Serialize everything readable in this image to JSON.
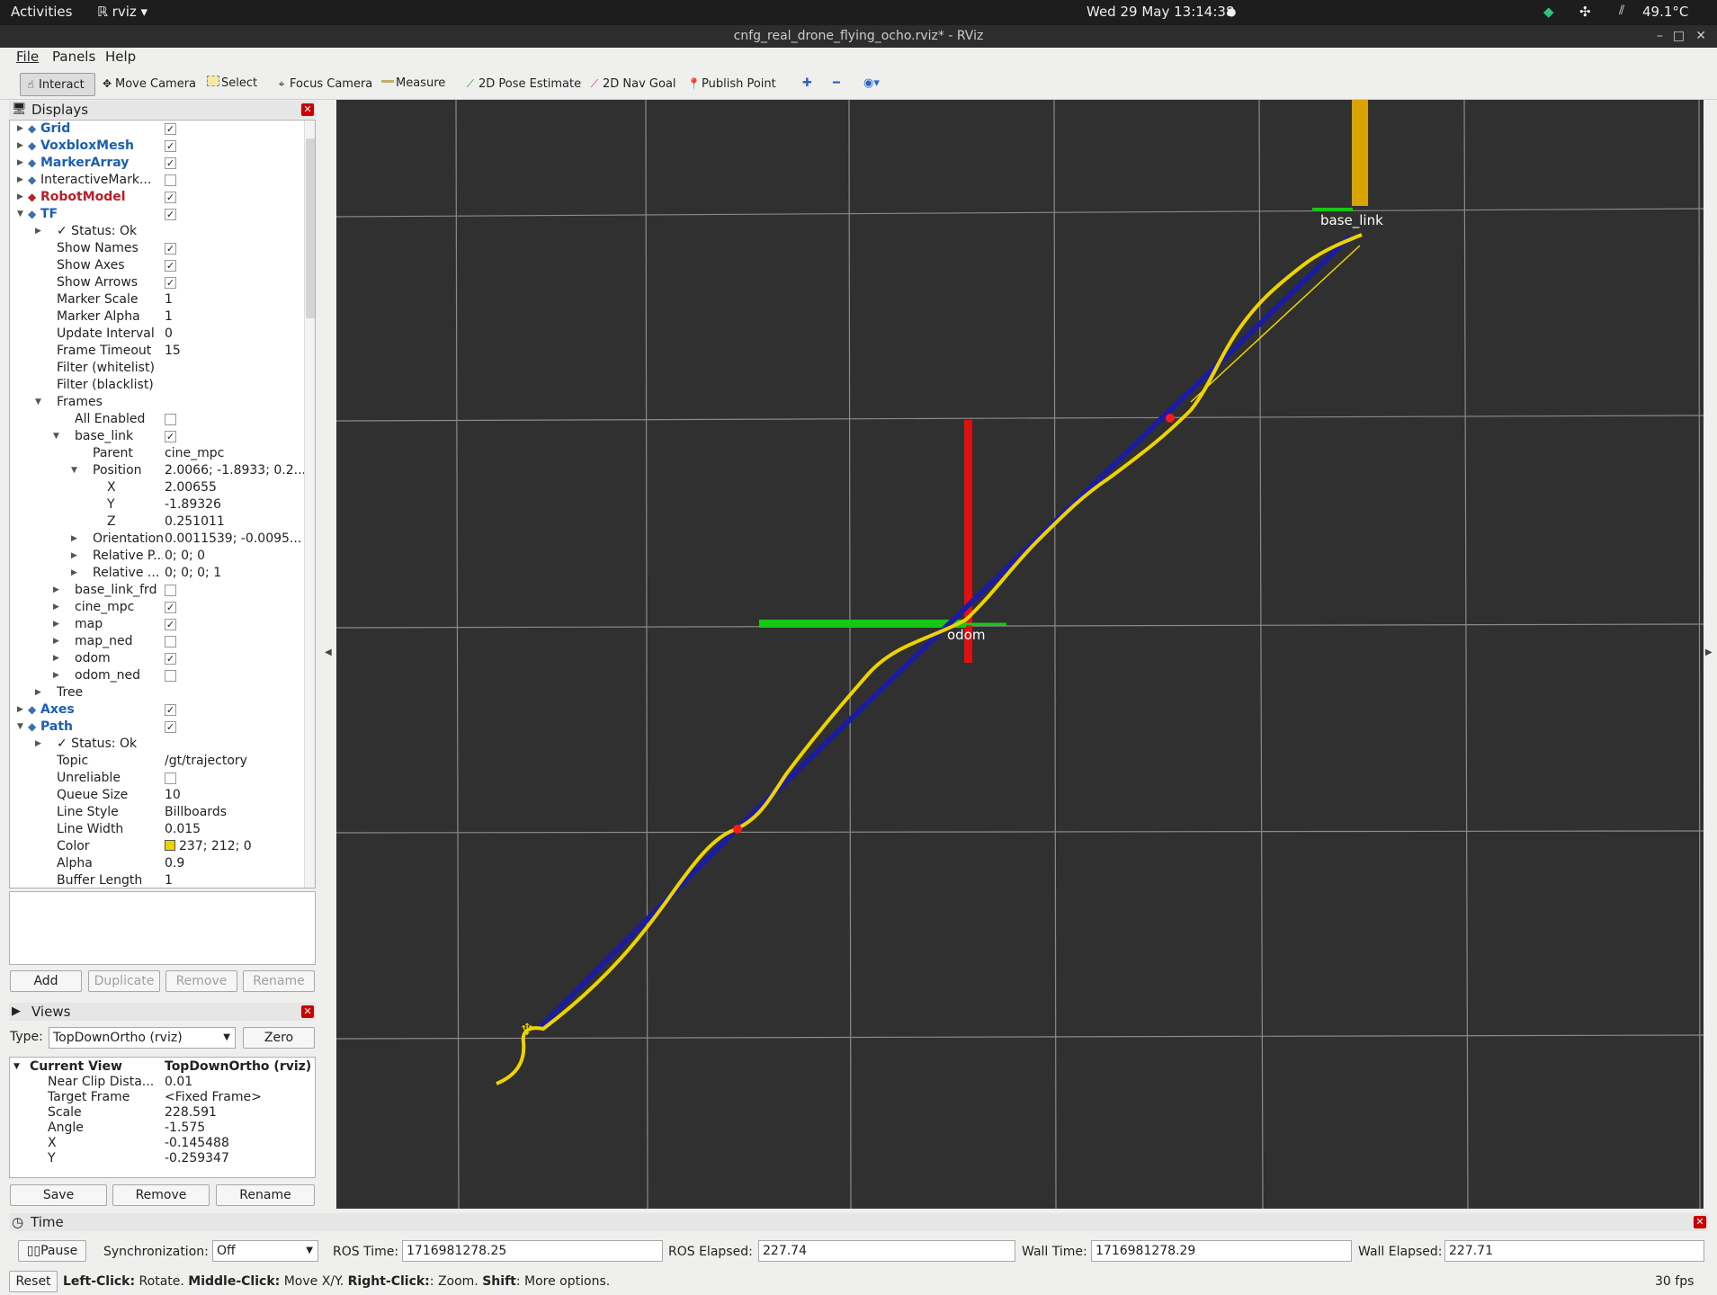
{
  "system_bar": {
    "activities": "Activities",
    "app": "rviz",
    "clock": "Wed 29 May  13:14:38",
    "temperature": "49.1°C"
  },
  "window": {
    "title": "cnfg_real_drone_flying_ocho.rviz* - RViz"
  },
  "menu": [
    "File",
    "Panels",
    "Help"
  ],
  "toolbar": [
    {
      "label": "Interact",
      "icon": "hand-icon",
      "active": true
    },
    {
      "label": "Move Camera",
      "icon": "move-camera-icon"
    },
    {
      "label": "Select",
      "icon": "select-icon"
    },
    {
      "label": "Focus Camera",
      "icon": "focus-icon"
    },
    {
      "label": "Measure",
      "icon": "ruler-icon"
    },
    {
      "label": "2D Pose Estimate",
      "icon": "green-arrow-icon"
    },
    {
      "label": "2D Nav Goal",
      "icon": "pink-arrow-icon"
    },
    {
      "label": "Publish Point",
      "icon": "map-pin-icon"
    }
  ],
  "displays": {
    "title": "Displays",
    "rows": [
      {
        "label": "Grid",
        "value": "",
        "check": true,
        "indent": 0,
        "arrow": "right",
        "style": "blue"
      },
      {
        "label": "VoxbloxMesh",
        "value": "",
        "check": true,
        "indent": 0,
        "arrow": "right",
        "style": "blue"
      },
      {
        "label": "MarkerArray",
        "value": "",
        "check": true,
        "indent": 0,
        "arrow": "right",
        "style": "blue"
      },
      {
        "label": "InteractiveMark...",
        "value": "",
        "check": false,
        "indent": 0,
        "arrow": "right",
        "style": ""
      },
      {
        "label": "RobotModel",
        "value": "",
        "check": true,
        "indent": 0,
        "arrow": "right",
        "style": "red"
      },
      {
        "label": "TF",
        "value": "",
        "check": true,
        "indent": 0,
        "arrow": "down",
        "style": "blue"
      },
      {
        "label": "✓ Status: Ok",
        "value": "",
        "indent": 1,
        "arrow": "right",
        "style": ""
      },
      {
        "label": "Show Names",
        "value": "",
        "check": true,
        "indent": 1,
        "style": ""
      },
      {
        "label": "Show Axes",
        "value": "",
        "check": true,
        "indent": 1,
        "style": ""
      },
      {
        "label": "Show Arrows",
        "value": "",
        "check": true,
        "indent": 1,
        "style": ""
      },
      {
        "label": "Marker Scale",
        "value": "1",
        "indent": 1,
        "style": ""
      },
      {
        "label": "Marker Alpha",
        "value": "1",
        "indent": 1,
        "style": ""
      },
      {
        "label": "Update Interval",
        "value": "0",
        "indent": 1,
        "style": ""
      },
      {
        "label": "Frame Timeout",
        "value": "15",
        "indent": 1,
        "style": ""
      },
      {
        "label": "Filter (whitelist)",
        "value": "",
        "indent": 1,
        "style": ""
      },
      {
        "label": "Filter (blacklist)",
        "value": "",
        "indent": 1,
        "style": ""
      },
      {
        "label": "Frames",
        "value": "",
        "indent": 1,
        "arrow": "down",
        "style": ""
      },
      {
        "label": "All Enabled",
        "value": "",
        "check": false,
        "indent": 2,
        "style": ""
      },
      {
        "label": "base_link",
        "value": "",
        "check": true,
        "indent": 2,
        "arrow": "down",
        "style": ""
      },
      {
        "label": "Parent",
        "value": "cine_mpc",
        "indent": 3,
        "style": ""
      },
      {
        "label": "Position",
        "value": "2.0066; -1.8933; 0.2...",
        "indent": 3,
        "arrow": "down",
        "style": ""
      },
      {
        "label": "X",
        "value": "2.00655",
        "indent": 4,
        "style": ""
      },
      {
        "label": "Y",
        "value": "-1.89326",
        "indent": 4,
        "style": ""
      },
      {
        "label": "Z",
        "value": "0.251011",
        "indent": 4,
        "style": ""
      },
      {
        "label": "Orientation",
        "value": "0.0011539; -0.0095...",
        "indent": 3,
        "arrow": "right",
        "style": ""
      },
      {
        "label": "Relative P...",
        "value": "0; 0; 0",
        "indent": 3,
        "arrow": "right",
        "style": ""
      },
      {
        "label": "Relative ...",
        "value": "0; 0; 0; 1",
        "indent": 3,
        "arrow": "right",
        "style": ""
      },
      {
        "label": "base_link_frd",
        "value": "",
        "check": false,
        "indent": 2,
        "arrow": "right",
        "style": ""
      },
      {
        "label": "cine_mpc",
        "value": "",
        "check": true,
        "indent": 2,
        "arrow": "right",
        "style": ""
      },
      {
        "label": "map",
        "value": "",
        "check": true,
        "indent": 2,
        "arrow": "right",
        "style": ""
      },
      {
        "label": "map_ned",
        "value": "",
        "check": false,
        "indent": 2,
        "arrow": "right",
        "style": ""
      },
      {
        "label": "odom",
        "value": "",
        "check": true,
        "indent": 2,
        "arrow": "right",
        "style": ""
      },
      {
        "label": "odom_ned",
        "value": "",
        "check": false,
        "indent": 2,
        "arrow": "right",
        "style": ""
      },
      {
        "label": "Tree",
        "value": "",
        "indent": 1,
        "arrow": "right",
        "style": ""
      },
      {
        "label": "Axes",
        "value": "",
        "check": true,
        "indent": 0,
        "arrow": "right",
        "style": "blue"
      },
      {
        "label": "Path",
        "value": "",
        "check": true,
        "indent": 0,
        "arrow": "down",
        "style": "blue"
      },
      {
        "label": "✓ Status: Ok",
        "value": "",
        "indent": 1,
        "arrow": "right",
        "style": ""
      },
      {
        "label": "Topic",
        "value": "/gt/trajectory",
        "indent": 1,
        "style": ""
      },
      {
        "label": "Unreliable",
        "value": "",
        "check": false,
        "indent": 1,
        "style": ""
      },
      {
        "label": "Queue Size",
        "value": "10",
        "indent": 1,
        "style": ""
      },
      {
        "label": "Line Style",
        "value": "Billboards",
        "indent": 1,
        "style": ""
      },
      {
        "label": "Line Width",
        "value": "0.015",
        "indent": 1,
        "style": ""
      },
      {
        "label": "Color",
        "value": "237; 212; 0",
        "swatch": "#edd400",
        "indent": 1,
        "style": ""
      },
      {
        "label": "Alpha",
        "value": "0.9",
        "indent": 1,
        "style": ""
      },
      {
        "label": "Buffer Length",
        "value": "1",
        "indent": 1,
        "style": ""
      }
    ],
    "buttons": {
      "add": "Add",
      "duplicate": "Duplicate",
      "remove": "Remove",
      "rename": "Rename"
    }
  },
  "views": {
    "title": "Views",
    "type_label": "Type:",
    "type_value": "TopDownOrtho (rviz)",
    "zero": "Zero",
    "current_view_label": "Current View",
    "current_view_value": "TopDownOrtho (rviz)",
    "props": [
      {
        "label": "Near Clip Dista...",
        "value": "0.01"
      },
      {
        "label": "Target Frame",
        "value": "<Fixed Frame>"
      },
      {
        "label": "Scale",
        "value": "228.591"
      },
      {
        "label": "Angle",
        "value": "-1.575"
      },
      {
        "label": "X",
        "value": "-0.145488"
      },
      {
        "label": "Y",
        "value": "-0.259347"
      }
    ],
    "buttons": {
      "save": "Save",
      "remove": "Remove",
      "rename": "Rename"
    }
  },
  "viewport": {
    "frame_label_center": "odom",
    "frame_label_top": "base_link"
  },
  "time_panel": {
    "title": "Time",
    "pause": "Pause",
    "sync_label": "Synchronization:",
    "sync_value": "Off",
    "ros_time_label": "ROS Time:",
    "ros_time": "1716981278.25",
    "ros_elapsed_label": "ROS Elapsed:",
    "ros_elapsed": "227.74",
    "wall_time_label": "Wall Time:",
    "wall_time": "1716981278.29",
    "wall_elapsed_label": "Wall Elapsed:",
    "wall_elapsed": "227.71"
  },
  "status": {
    "reset": "Reset",
    "k1": "Left-Click:",
    "t1": " Rotate. ",
    "k2": "Middle-Click:",
    "t2": " Move X/Y. ",
    "k3": "Right-Click:",
    "t3": ": Zoom. ",
    "k4": "Shift",
    "t4": ": More options.",
    "fps": "30 fps"
  },
  "colors": {
    "viewport_bg": "#303030",
    "path_yellow": "#edd400",
    "path_blue": "#1c1ca0",
    "axis_red": "#e01010",
    "axis_green": "#16c716"
  }
}
